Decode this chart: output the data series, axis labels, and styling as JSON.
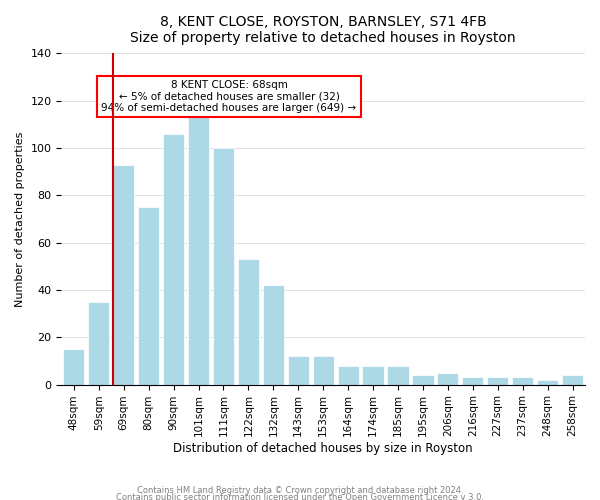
{
  "title": "8, KENT CLOSE, ROYSTON, BARNSLEY, S71 4FB",
  "subtitle": "Size of property relative to detached houses in Royston",
  "xlabel": "Distribution of detached houses by size in Royston",
  "ylabel": "Number of detached properties",
  "bar_color": "#add8e6",
  "highlight_color": "#cc0000",
  "categories": [
    "48sqm",
    "59sqm",
    "69sqm",
    "80sqm",
    "90sqm",
    "101sqm",
    "111sqm",
    "122sqm",
    "132sqm",
    "143sqm",
    "153sqm",
    "164sqm",
    "174sqm",
    "185sqm",
    "195sqm",
    "206sqm",
    "216sqm",
    "227sqm",
    "237sqm",
    "248sqm",
    "258sqm"
  ],
  "values": [
    15,
    35,
    93,
    75,
    106,
    113,
    100,
    53,
    42,
    12,
    12,
    8,
    8,
    8,
    4,
    5,
    3,
    3,
    3,
    2,
    4
  ],
  "highlight_index": 2,
  "annotation_title": "8 KENT CLOSE: 68sqm",
  "annotation_line1": "← 5% of detached houses are smaller (32)",
  "annotation_line2": "94% of semi-detached houses are larger (649) →",
  "ylim": [
    0,
    140
  ],
  "yticks": [
    0,
    20,
    40,
    60,
    80,
    100,
    120,
    140
  ],
  "footnote1": "Contains HM Land Registry data © Crown copyright and database right 2024.",
  "footnote2": "Contains public sector information licensed under the Open Government Licence v 3.0."
}
